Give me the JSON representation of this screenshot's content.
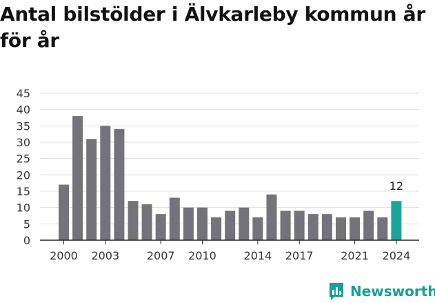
{
  "colors": {
    "bar": "#747379",
    "highlight": "#1aa59b",
    "grid": "#dddddd",
    "axis": "#222222",
    "brand": "#1a9e95"
  },
  "logo": {
    "text": "Newsworthy",
    "icon": "bar-chart-icon"
  },
  "chart_data": {
    "type": "bar",
    "title": "Antal bilstölder i Älvkarleby kommun år för år",
    "xlabel": "",
    "ylabel": "",
    "ylim": [
      0,
      45
    ],
    "yticks": [
      0,
      5,
      10,
      15,
      20,
      25,
      30,
      35,
      40,
      45
    ],
    "grid": true,
    "x": [
      2000,
      2001,
      2002,
      2003,
      2004,
      2005,
      2006,
      2007,
      2008,
      2009,
      2010,
      2011,
      2012,
      2013,
      2014,
      2015,
      2016,
      2017,
      2018,
      2019,
      2020,
      2021,
      2022,
      2023,
      2024
    ],
    "values": [
      17,
      38,
      31,
      35,
      34,
      12,
      11,
      8,
      13,
      10,
      10,
      7,
      9,
      10,
      7,
      14,
      9,
      9,
      8,
      8,
      7,
      7,
      9,
      7,
      12
    ],
    "xticks": [
      2000,
      2003,
      2007,
      2010,
      2014,
      2017,
      2021,
      2024
    ],
    "highlight": {
      "x": 2024,
      "label": "12"
    }
  }
}
